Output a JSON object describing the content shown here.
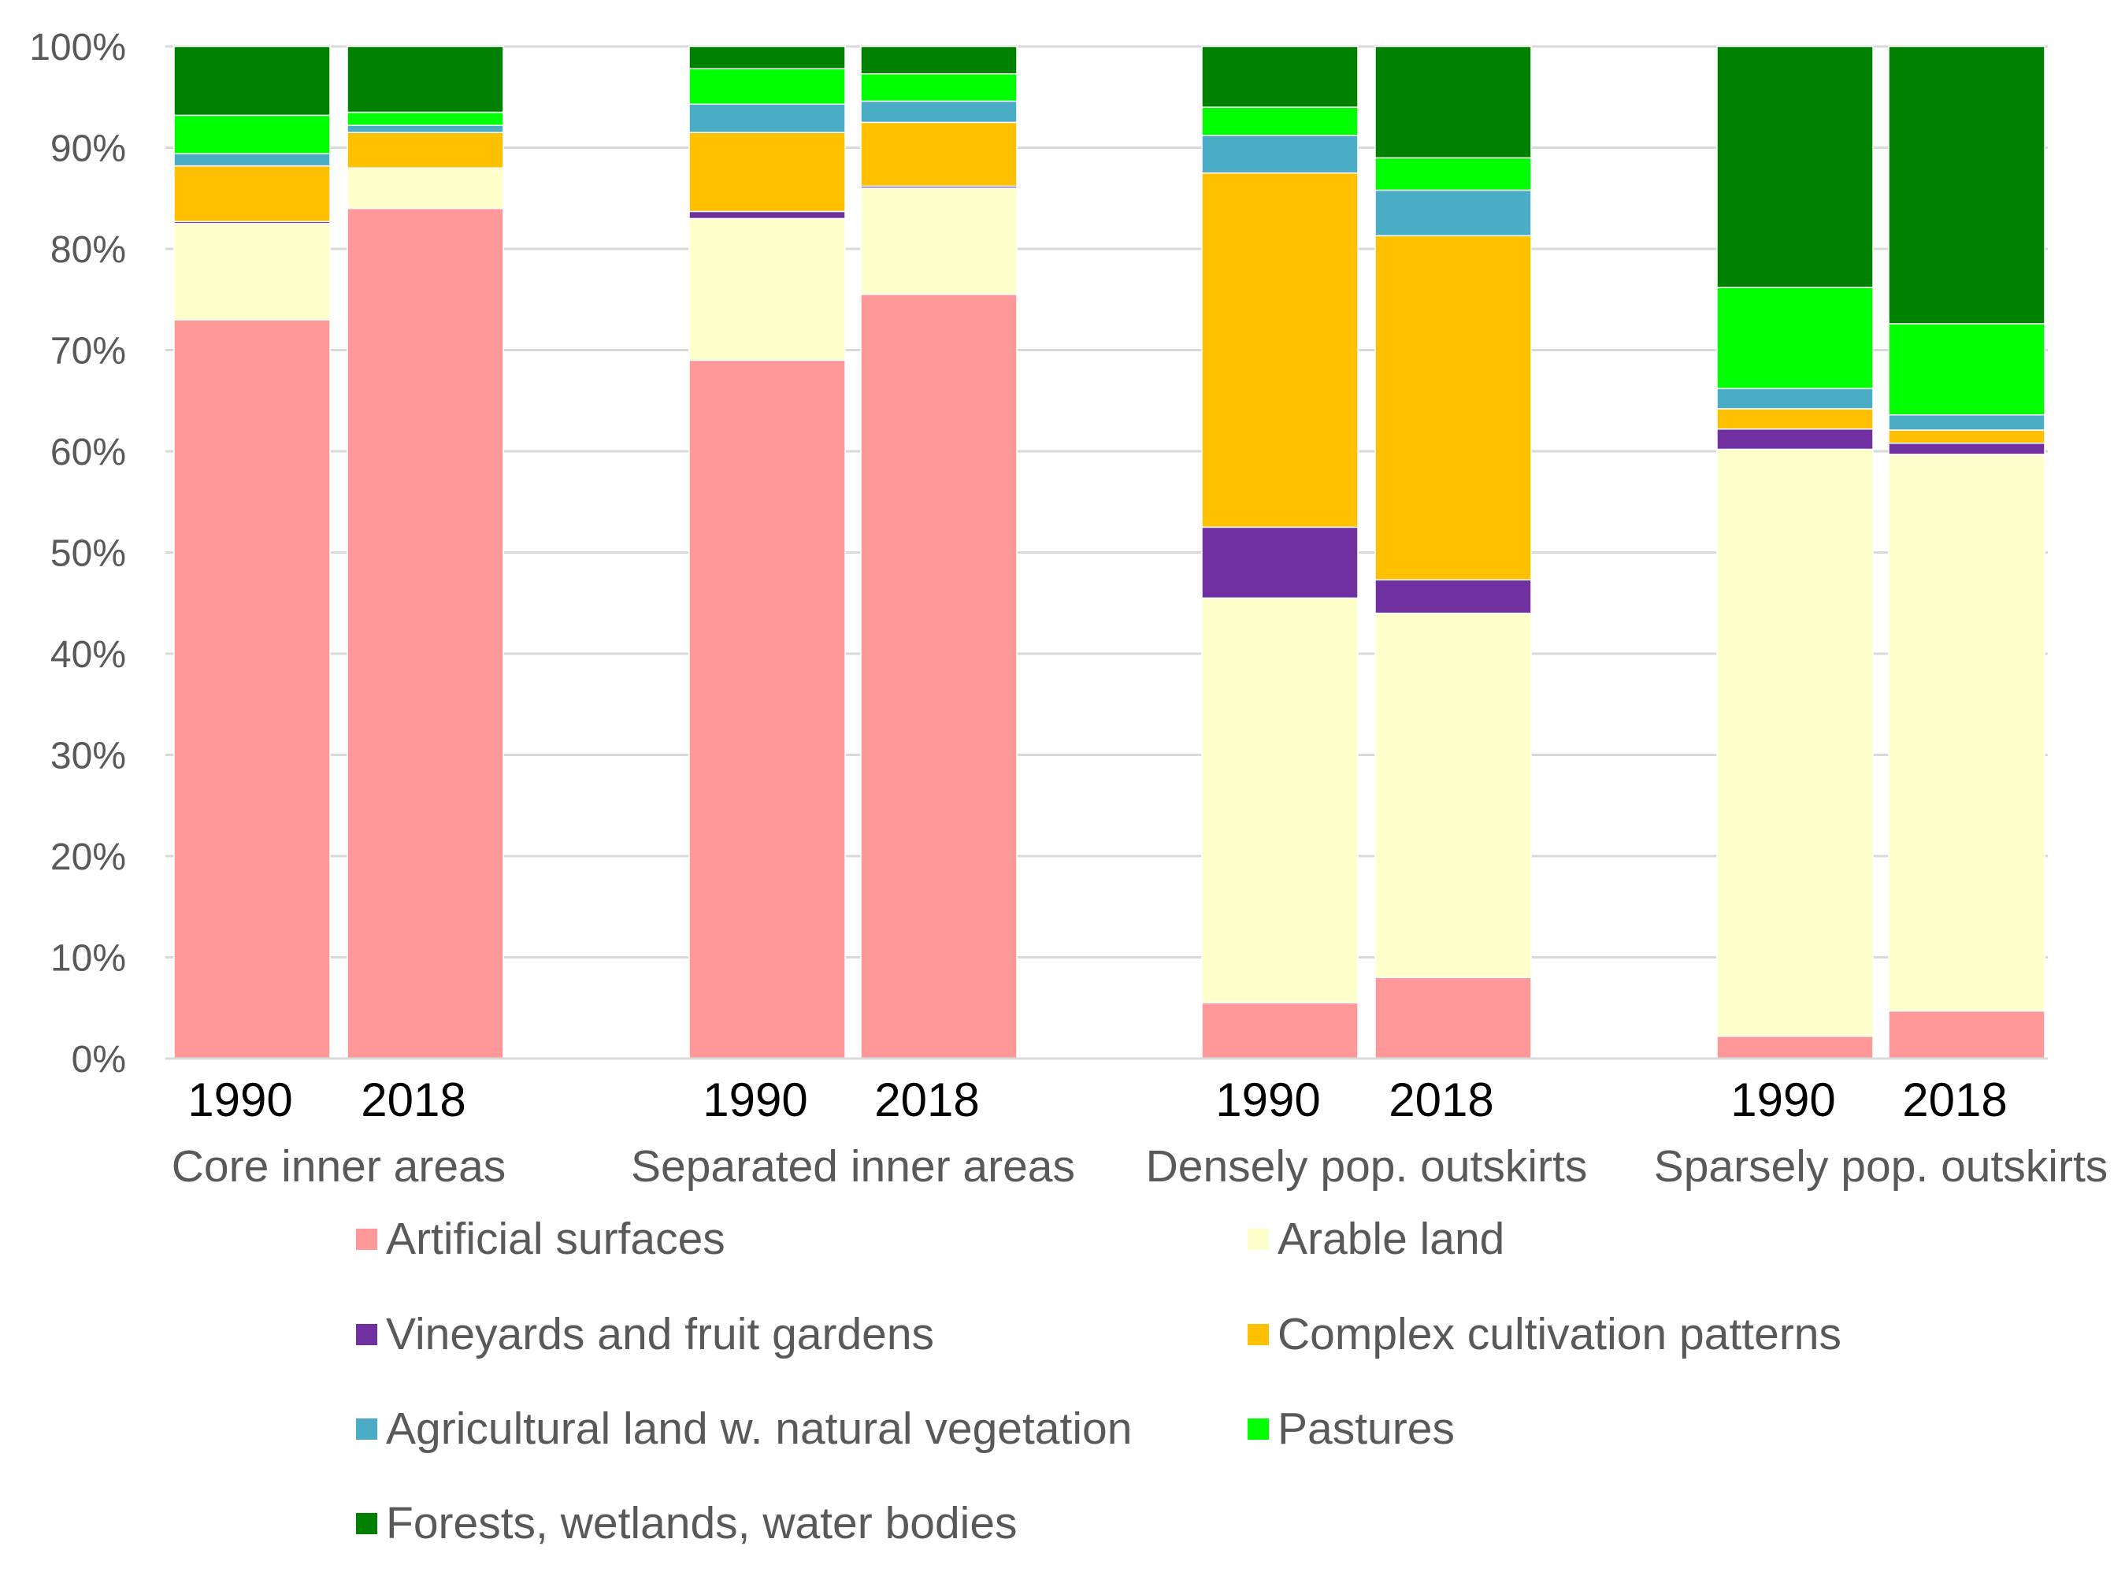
{
  "chart_data": {
    "type": "bar",
    "stacked": true,
    "title": "",
    "xlabel": "",
    "ylabel": "",
    "ylim": [
      0,
      100
    ],
    "y_ticks": [
      "0%",
      "10%",
      "20%",
      "30%",
      "40%",
      "50%",
      "60%",
      "70%",
      "80%",
      "90%",
      "100%"
    ],
    "grid": true,
    "legend_position": "bottom",
    "groups": [
      {
        "name": "Core inner areas",
        "bars": [
          "1990",
          "2018"
        ]
      },
      {
        "name": "Separated inner areas",
        "bars": [
          "1990",
          "2018"
        ]
      },
      {
        "name": "Densely pop. outskirts",
        "bars": [
          "1990",
          "2018"
        ]
      },
      {
        "name": "Sparsely pop. outskirts",
        "bars": [
          "1990",
          "2018"
        ]
      }
    ],
    "categories": [
      "Core inner areas 1990",
      "Core inner areas 2018",
      "Separated inner areas 1990",
      "Separated inner areas 2018",
      "Densely pop. outskirts 1990",
      "Densely pop. outskirts 2018",
      "Sparsely pop. outskirts 1990",
      "Sparsely pop. outskirts 2018"
    ],
    "series": [
      {
        "name": "Artificial surfaces",
        "color": "#FF9999",
        "values": [
          73.0,
          84.0,
          69.0,
          75.5,
          5.5,
          8.0,
          2.2,
          4.7
        ]
      },
      {
        "name": "Arable land",
        "color": "#FFFFCC",
        "values": [
          9.5,
          4.0,
          14.0,
          10.5,
          40.0,
          36.0,
          58.0,
          55.0
        ]
      },
      {
        "name": "Vineyards and fruit gardens",
        "color": "#7030A0",
        "values": [
          0.2,
          0.0,
          0.7,
          0.2,
          7.0,
          3.3,
          2.0,
          1.1
        ]
      },
      {
        "name": "Complex cultivation patterns",
        "color": "#FFC000",
        "values": [
          5.5,
          3.5,
          7.8,
          6.3,
          35.0,
          34.0,
          2.0,
          1.3
        ]
      },
      {
        "name": "Agricultural land w. natural vegetation",
        "color": "#4BACC6",
        "values": [
          1.2,
          0.7,
          2.8,
          2.1,
          3.7,
          4.5,
          2.0,
          1.5
        ]
      },
      {
        "name": "Pastures",
        "color": "#00FF00",
        "values": [
          3.8,
          1.3,
          3.5,
          2.7,
          2.8,
          3.2,
          10.0,
          9.0
        ]
      },
      {
        "name": "Forests, wetlands, water bodies",
        "color": "#008000",
        "values": [
          6.8,
          6.5,
          2.2,
          2.7,
          6.0,
          11.0,
          23.8,
          27.4
        ]
      }
    ]
  }
}
